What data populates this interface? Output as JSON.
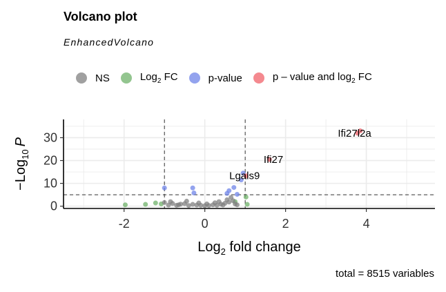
{
  "chart_data": {
    "type": "scatter",
    "title": "Volcano plot",
    "subtitle": "EnhancedVolcano",
    "caption": "total = 8515 variables",
    "xlabel_main": "Log",
    "xlabel_sub": "2",
    "xlabel_rest": " fold change",
    "ylabel_main": "−Log",
    "ylabel_sub": "10",
    "ylabel_rest": "P",
    "xlim": [
      -3.5,
      5.7
    ],
    "ylim": [
      -1,
      38
    ],
    "x_ticks": [
      -2,
      0,
      2,
      4
    ],
    "y_ticks": [
      0,
      10,
      20,
      30
    ],
    "fc_cutoff": [
      -1,
      1
    ],
    "p_cutoff_y": 5,
    "legend": [
      {
        "label": "NS",
        "sub": "",
        "rest": "",
        "color": "#808080"
      },
      {
        "label": "Log",
        "sub": "2",
        "rest": " FC",
        "color": "#6fb26a"
      },
      {
        "label": "p-value",
        "sub": "",
        "rest": "",
        "color": "#6f84e8"
      },
      {
        "label": "p – value and log",
        "sub": "2",
        "rest": " FC",
        "color": "#f0626a"
      }
    ],
    "colors": {
      "ns": "#808080",
      "fc": "#6fb26a",
      "p": "#6f84e8",
      "both": "#f0626a"
    },
    "series": [
      {
        "group": "fc",
        "points": [
          [
            -1.97,
            0.6
          ],
          [
            -1.47,
            0.8
          ],
          [
            -1.22,
            1.4
          ],
          [
            -1.08,
            1.0
          ],
          [
            1.02,
            4.0
          ],
          [
            1.05,
            0.8
          ],
          [
            0.75,
            2.0
          ]
        ]
      },
      {
        "group": "p",
        "points": [
          [
            -1.0,
            8.0
          ],
          [
            -0.3,
            8.0
          ],
          [
            -0.27,
            5.8
          ],
          [
            0.55,
            5.6
          ],
          [
            0.6,
            6.8
          ],
          [
            0.72,
            8.2
          ],
          [
            0.8,
            5.2
          ],
          [
            0.9,
            11.5
          ],
          [
            0.95,
            14.5
          ]
        ]
      },
      {
        "group": "both",
        "points": [
          [
            1.02,
            13.3
          ],
          [
            1.6,
            20.5
          ],
          [
            3.78,
            32.0
          ],
          [
            3.85,
            33.0
          ]
        ]
      },
      {
        "group": "ns",
        "points": [
          [
            -1.0,
            1.6
          ],
          [
            -0.9,
            0.5
          ],
          [
            -0.8,
            1.2
          ],
          [
            -0.7,
            0.4
          ],
          [
            -0.6,
            0.9
          ],
          [
            -0.5,
            1.1
          ],
          [
            -0.4,
            0.3
          ],
          [
            -0.3,
            0.8
          ],
          [
            -0.2,
            0.5
          ],
          [
            -0.1,
            0.4
          ],
          [
            0.0,
            0.2
          ],
          [
            0.1,
            0.3
          ],
          [
            0.2,
            0.6
          ],
          [
            0.3,
            0.4
          ],
          [
            0.4,
            0.9
          ],
          [
            0.5,
            1.3
          ],
          [
            0.55,
            2.8
          ],
          [
            0.6,
            1.8
          ],
          [
            0.65,
            3.8
          ],
          [
            0.7,
            2.4
          ],
          [
            0.75,
            1.0
          ],
          [
            0.8,
            0.6
          ],
          [
            -0.85,
            2.0
          ],
          [
            -0.45,
            2.2
          ],
          [
            0.35,
            2.0
          ],
          [
            0.25,
            1.5
          ],
          [
            -0.15,
            1.4
          ],
          [
            0.05,
            1.0
          ],
          [
            -0.65,
            0.6
          ],
          [
            0.45,
            0.5
          ]
        ]
      }
    ],
    "labels": [
      {
        "text": "Ifi27l2a",
        "x": 3.78,
        "y": 32.0
      },
      {
        "text": "Ifi27",
        "x": 1.6,
        "y": 20.5
      },
      {
        "text": "Lgals9",
        "x": 1.02,
        "y": 13.3
      }
    ]
  }
}
